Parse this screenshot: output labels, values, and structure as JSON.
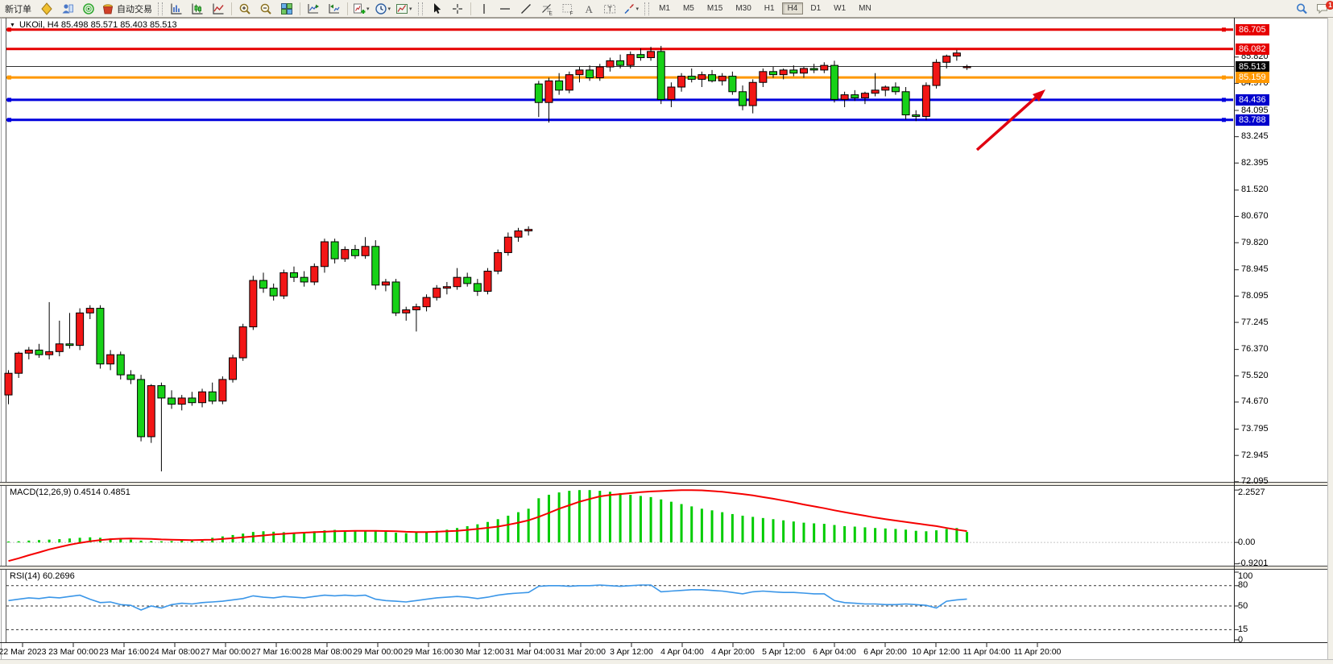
{
  "toolbar": {
    "new_order_label": "新订单",
    "autotrade_label": "自动交易",
    "timeframes": [
      "M1",
      "M5",
      "M15",
      "M30",
      "H1",
      "H4",
      "D1",
      "W1",
      "MN"
    ],
    "active_timeframe": "H4",
    "notification_count": "1",
    "items": [
      {
        "t": "text",
        "name": "new-order-button",
        "label": "新订单"
      },
      {
        "t": "icon",
        "name": "market-watch-icon"
      },
      {
        "t": "icon",
        "name": "profile-icon"
      },
      {
        "t": "icon",
        "name": "navigator-icon"
      },
      {
        "t": "iconlabel",
        "name": "autotrade-button",
        "icon": "autotrade",
        "label": "自动交易"
      },
      {
        "t": "handle"
      },
      {
        "t": "icon",
        "name": "bar-chart-icon"
      },
      {
        "t": "icon",
        "name": "candlestick-chart-icon"
      },
      {
        "t": "icon",
        "name": "line-chart-icon"
      },
      {
        "t": "sep"
      },
      {
        "t": "icon",
        "name": "zoom-in-icon"
      },
      {
        "t": "icon",
        "name": "zoom-out-icon"
      },
      {
        "t": "icon",
        "name": "tile-windows-icon"
      },
      {
        "t": "sep"
      },
      {
        "t": "icon",
        "name": "scroll-to-end-icon"
      },
      {
        "t": "icon",
        "name": "chart-shift-icon"
      },
      {
        "t": "sep"
      },
      {
        "t": "icon",
        "name": "add-indicator-icon",
        "caret": true
      },
      {
        "t": "icon",
        "name": "period-icon",
        "caret": true
      },
      {
        "t": "icon",
        "name": "template-icon",
        "caret": true
      },
      {
        "t": "handle"
      },
      {
        "t": "icon",
        "name": "cursor-icon"
      },
      {
        "t": "icon",
        "name": "crosshair-icon"
      },
      {
        "t": "sep"
      },
      {
        "t": "icon",
        "name": "vertical-line-icon"
      },
      {
        "t": "icon",
        "name": "horizontal-line-icon"
      },
      {
        "t": "icon",
        "name": "trendline-icon"
      },
      {
        "t": "icon",
        "name": "fibonacci-icon"
      },
      {
        "t": "icon",
        "name": "fibo-grid-icon"
      },
      {
        "t": "icon",
        "name": "text-icon"
      },
      {
        "t": "icon",
        "name": "label-icon"
      },
      {
        "t": "icon",
        "name": "shapes-icon",
        "caret": true
      },
      {
        "t": "handle"
      },
      {
        "t": "tfgroup"
      },
      {
        "t": "spacer"
      },
      {
        "t": "icon",
        "name": "search-icon"
      },
      {
        "t": "icon",
        "name": "notifications-icon",
        "badge": "1"
      }
    ]
  },
  "chart": {
    "title": "UKOil, H4  85.498 85.571 85.403 85.513",
    "symbol": "UKOil",
    "timeframe": "H4",
    "ohlc": {
      "open": "85.498",
      "high": "85.571",
      "low": "85.403",
      "close": "85.513"
    }
  },
  "panels": {
    "macd": {
      "label": "MACD(12,26,9) 0.4514 0.4851",
      "axis": [
        {
          "t": "2.2527",
          "v": 2.2527
        },
        {
          "t": "0.00",
          "v": 0
        },
        {
          "t": "-0.9201",
          "v": -0.9201
        }
      ]
    },
    "rsi": {
      "label": "RSI(14) 60.2696",
      "axis": [
        {
          "t": "100",
          "v": 100
        },
        {
          "t": "80",
          "v": 80
        },
        {
          "t": "50",
          "v": 50
        },
        {
          "t": "15",
          "v": 15
        },
        {
          "t": "0",
          "v": 0
        }
      ],
      "levels": [
        80,
        50,
        15
      ]
    }
  },
  "chart_data": {
    "type": "candlestick",
    "symbol": "UKOil",
    "period": "H4",
    "price_ylim": [
      72.09,
      87.09
    ],
    "up_color": "#f21616",
    "down_color": "#17d117",
    "price_axis_ticks": [
      {
        "t": "85.820",
        "p": 85.82
      },
      {
        "t": "84.970",
        "p": 84.97
      },
      {
        "t": "84.095",
        "p": 84.095
      },
      {
        "t": "83.245",
        "p": 83.245
      },
      {
        "t": "82.395",
        "p": 82.395
      },
      {
        "t": "81.520",
        "p": 81.52
      },
      {
        "t": "80.670",
        "p": 80.67
      },
      {
        "t": "79.820",
        "p": 79.82
      },
      {
        "t": "78.945",
        "p": 78.945
      },
      {
        "t": "78.095",
        "p": 78.095
      },
      {
        "t": "77.245",
        "p": 77.245
      },
      {
        "t": "76.370",
        "p": 76.37
      },
      {
        "t": "75.520",
        "p": 75.52
      },
      {
        "t": "74.670",
        "p": 74.67
      },
      {
        "t": "73.795",
        "p": 73.795
      },
      {
        "t": "72.945",
        "p": 72.945
      },
      {
        "t": "72.095",
        "p": 72.095
      }
    ],
    "time_labels": [
      "22 Mar 2023",
      "23 Mar 00:00",
      "23 Mar 16:00",
      "24 Mar 08:00",
      "27 Mar 00:00",
      "27 Mar 16:00",
      "28 Mar 08:00",
      "29 Mar 00:00",
      "29 Mar 16:00",
      "30 Mar 12:00",
      "31 Mar 04:00",
      "31 Mar 20:00",
      "3 Apr 12:00",
      "4 Apr 04:00",
      "4 Apr 20:00",
      "5 Apr 12:00",
      "6 Apr 04:00",
      "6 Apr 20:00",
      "10 Apr 12:00",
      "11 Apr 04:00",
      "11 Apr 20:00"
    ],
    "horizontal_lines": [
      {
        "price": 86.705,
        "color": "#e60000",
        "selected": true
      },
      {
        "price": 86.082,
        "color": "#e60000",
        "selected": false
      },
      {
        "price": 85.159,
        "color": "#ff9800",
        "selected": true
      },
      {
        "price": 84.436,
        "color": "#0000dd",
        "selected": true
      },
      {
        "price": 83.788,
        "color": "#0000dd",
        "selected": true
      }
    ],
    "bid_line": {
      "price": 85.513,
      "color": "#303030"
    },
    "badges": [
      {
        "t": "86.705",
        "p": 86.705,
        "bg": "#e60000"
      },
      {
        "t": "86.082",
        "p": 86.082,
        "bg": "#e60000"
      },
      {
        "t": "85.513",
        "p": 85.513,
        "bg": "#000000"
      },
      {
        "t": "85.159",
        "p": 85.159,
        "bg": "#ff9800"
      },
      {
        "t": "84.436",
        "p": 84.436,
        "bg": "#0000cc"
      },
      {
        "t": "83.788",
        "p": 83.788,
        "bg": "#0000cc"
      }
    ],
    "arrow_annotation": {
      "from": [
        1213,
        186
      ],
      "to": [
        1298,
        111
      ],
      "color": "#e00010"
    },
    "candles_ohlc": [
      [
        74.9,
        75.7,
        74.6,
        75.6
      ],
      [
        75.6,
        76.3,
        75.45,
        76.25
      ],
      [
        76.25,
        76.45,
        76.05,
        76.35
      ],
      [
        76.35,
        76.55,
        76.1,
        76.2
      ],
      [
        76.2,
        77.9,
        76.05,
        76.3
      ],
      [
        76.3,
        77.3,
        76.15,
        76.55
      ],
      [
        76.55,
        77.55,
        76.4,
        76.5
      ],
      [
        76.5,
        77.7,
        76.35,
        77.55
      ],
      [
        77.55,
        77.8,
        77.35,
        77.7
      ],
      [
        77.7,
        77.8,
        75.75,
        75.9
      ],
      [
        75.9,
        76.35,
        75.7,
        76.2
      ],
      [
        76.2,
        76.3,
        75.4,
        75.55
      ],
      [
        75.55,
        75.7,
        75.25,
        75.4
      ],
      [
        75.4,
        75.55,
        73.4,
        73.55
      ],
      [
        73.55,
        75.25,
        73.35,
        75.2
      ],
      [
        75.2,
        75.3,
        72.43,
        74.8
      ],
      [
        74.8,
        75.05,
        74.45,
        74.6
      ],
      [
        74.6,
        74.9,
        74.4,
        74.8
      ],
      [
        74.8,
        75.0,
        74.55,
        74.65
      ],
      [
        74.65,
        75.1,
        74.5,
        75.0
      ],
      [
        75.0,
        75.3,
        74.6,
        74.7
      ],
      [
        74.7,
        75.5,
        74.6,
        75.4
      ],
      [
        75.4,
        76.2,
        75.3,
        76.1
      ],
      [
        76.1,
        77.2,
        76.0,
        77.1
      ],
      [
        77.1,
        78.75,
        77.0,
        78.6
      ],
      [
        78.6,
        78.85,
        78.2,
        78.35
      ],
      [
        78.35,
        78.5,
        77.95,
        78.1
      ],
      [
        78.1,
        78.95,
        78.0,
        78.85
      ],
      [
        78.85,
        79.05,
        78.55,
        78.7
      ],
      [
        78.7,
        78.9,
        78.4,
        78.55
      ],
      [
        78.55,
        79.15,
        78.45,
        79.05
      ],
      [
        79.05,
        79.95,
        78.85,
        79.85
      ],
      [
        79.85,
        79.95,
        79.15,
        79.3
      ],
      [
        79.3,
        79.7,
        79.2,
        79.6
      ],
      [
        79.6,
        79.75,
        79.3,
        79.4
      ],
      [
        79.4,
        80.0,
        79.3,
        79.7
      ],
      [
        79.7,
        79.9,
        78.3,
        78.45
      ],
      [
        78.45,
        78.65,
        78.25,
        78.55
      ],
      [
        78.55,
        78.65,
        77.45,
        77.55
      ],
      [
        77.55,
        77.75,
        77.3,
        77.65
      ],
      [
        77.65,
        77.85,
        76.95,
        77.75
      ],
      [
        77.75,
        78.15,
        77.6,
        78.05
      ],
      [
        78.05,
        78.45,
        77.95,
        78.35
      ],
      [
        78.35,
        78.55,
        78.15,
        78.4
      ],
      [
        78.4,
        79.0,
        78.3,
        78.7
      ],
      [
        78.7,
        78.85,
        78.4,
        78.5
      ],
      [
        78.5,
        78.65,
        78.1,
        78.25
      ],
      [
        78.25,
        79.0,
        78.15,
        78.9
      ],
      [
        78.9,
        79.6,
        78.8,
        79.5
      ],
      [
        79.5,
        80.15,
        79.4,
        80.0
      ],
      [
        80.0,
        80.3,
        79.85,
        80.2
      ],
      [
        80.2,
        80.35,
        80.05,
        80.25
      ],
      [
        84.95,
        85.05,
        83.88,
        84.35
      ],
      [
        84.35,
        85.15,
        83.7,
        85.05
      ],
      [
        85.05,
        85.3,
        84.6,
        84.75
      ],
      [
        84.75,
        85.35,
        84.65,
        85.25
      ],
      [
        85.25,
        85.5,
        85.0,
        85.4
      ],
      [
        85.4,
        85.55,
        85.05,
        85.15
      ],
      [
        85.15,
        85.6,
        85.05,
        85.5
      ],
      [
        85.5,
        85.8,
        85.35,
        85.7
      ],
      [
        85.7,
        85.9,
        85.45,
        85.55
      ],
      [
        85.55,
        86.0,
        85.45,
        85.9
      ],
      [
        85.9,
        86.1,
        85.7,
        85.8
      ],
      [
        85.8,
        86.15,
        85.7,
        86.0
      ],
      [
        86.0,
        86.18,
        84.3,
        84.45
      ],
      [
        84.45,
        85.0,
        84.2,
        84.85
      ],
      [
        84.85,
        85.3,
        84.7,
        85.2
      ],
      [
        85.2,
        85.45,
        85.0,
        85.1
      ],
      [
        85.1,
        85.35,
        84.85,
        85.25
      ],
      [
        85.25,
        85.4,
        85.0,
        85.05
      ],
      [
        85.05,
        85.3,
        84.9,
        85.2
      ],
      [
        85.2,
        85.35,
        84.6,
        84.7
      ],
      [
        84.7,
        84.9,
        84.1,
        84.25
      ],
      [
        84.25,
        85.1,
        84.0,
        85.0
      ],
      [
        85.0,
        85.45,
        84.85,
        85.35
      ],
      [
        85.35,
        85.5,
        85.15,
        85.25
      ],
      [
        85.25,
        85.45,
        85.1,
        85.4
      ],
      [
        85.4,
        85.55,
        85.2,
        85.3
      ],
      [
        85.3,
        85.5,
        85.15,
        85.45
      ],
      [
        85.45,
        85.6,
        85.3,
        85.4
      ],
      [
        85.4,
        85.65,
        85.3,
        85.55
      ],
      [
        85.55,
        85.7,
        84.35,
        84.45
      ],
      [
        84.45,
        84.7,
        84.2,
        84.6
      ],
      [
        84.6,
        84.75,
        84.4,
        84.5
      ],
      [
        84.5,
        84.7,
        84.3,
        84.65
      ],
      [
        84.65,
        85.3,
        84.55,
        84.75
      ],
      [
        84.75,
        84.9,
        84.55,
        84.85
      ],
      [
        84.85,
        85.0,
        84.6,
        84.7
      ],
      [
        84.7,
        84.85,
        83.8,
        83.95
      ],
      [
        83.95,
        84.1,
        83.75,
        83.9
      ],
      [
        83.9,
        85.0,
        83.78,
        84.9
      ],
      [
        84.9,
        85.75,
        84.8,
        85.65
      ],
      [
        85.65,
        85.9,
        85.45,
        85.85
      ],
      [
        85.85,
        86.05,
        85.7,
        85.95
      ],
      [
        85.498,
        85.571,
        85.403,
        85.513
      ]
    ],
    "macd": {
      "ylim": [
        -1.0,
        2.43
      ],
      "colors": {
        "histogram": "#00cc00",
        "signal": "#f50000"
      },
      "histogram": [
        0.04,
        0.05,
        0.08,
        0.1,
        0.12,
        0.14,
        0.17,
        0.2,
        0.22,
        0.2,
        0.17,
        0.15,
        0.12,
        0.08,
        0.06,
        0.05,
        0.06,
        0.08,
        0.1,
        0.14,
        0.2,
        0.26,
        0.32,
        0.38,
        0.45,
        0.48,
        0.46,
        0.44,
        0.42,
        0.45,
        0.48,
        0.52,
        0.54,
        0.52,
        0.5,
        0.52,
        0.5,
        0.46,
        0.42,
        0.4,
        0.42,
        0.46,
        0.5,
        0.55,
        0.62,
        0.7,
        0.78,
        0.88,
        1.0,
        1.15,
        1.3,
        1.45,
        1.9,
        2.05,
        2.15,
        2.22,
        2.25,
        2.25,
        2.22,
        2.18,
        2.12,
        2.05,
        2.0,
        1.95,
        1.85,
        1.75,
        1.65,
        1.55,
        1.45,
        1.38,
        1.3,
        1.22,
        1.15,
        1.1,
        1.05,
        1.0,
        0.95,
        0.9,
        0.85,
        0.82,
        0.8,
        0.75,
        0.7,
        0.68,
        0.65,
        0.62,
        0.6,
        0.58,
        0.55,
        0.5,
        0.48,
        0.52,
        0.58,
        0.62,
        0.4514
      ],
      "signal": [
        -0.8,
        -0.68,
        -0.55,
        -0.43,
        -0.3,
        -0.2,
        -0.1,
        -0.02,
        0.05,
        0.1,
        0.14,
        0.16,
        0.17,
        0.16,
        0.15,
        0.13,
        0.12,
        0.11,
        0.1,
        0.11,
        0.12,
        0.15,
        0.18,
        0.22,
        0.26,
        0.3,
        0.34,
        0.37,
        0.4,
        0.42,
        0.44,
        0.46,
        0.48,
        0.49,
        0.5,
        0.5,
        0.5,
        0.49,
        0.48,
        0.46,
        0.45,
        0.45,
        0.46,
        0.48,
        0.5,
        0.54,
        0.58,
        0.63,
        0.68,
        0.76,
        0.85,
        0.95,
        1.1,
        1.27,
        1.45,
        1.6,
        1.75,
        1.87,
        1.98,
        2.04,
        2.08,
        2.12,
        2.16,
        2.19,
        2.21,
        2.23,
        2.25,
        2.25,
        2.24,
        2.21,
        2.18,
        2.13,
        2.08,
        2.02,
        1.95,
        1.88,
        1.8,
        1.72,
        1.63,
        1.55,
        1.47,
        1.38,
        1.3,
        1.22,
        1.15,
        1.07,
        1.0,
        0.94,
        0.88,
        0.82,
        0.76,
        0.7,
        0.62,
        0.55,
        0.4851
      ],
      "current_macd": 0.4514,
      "current_signal": 0.4851
    },
    "rsi": {
      "ylim": [
        0,
        100
      ],
      "color": "#3a96e8",
      "current": 60.2696,
      "values": [
        58,
        60,
        62,
        61,
        63,
        62,
        64,
        66,
        60,
        55,
        56,
        52,
        51,
        44,
        50,
        47,
        52,
        54,
        53,
        55,
        56,
        57,
        59,
        61,
        65,
        63,
        62,
        64,
        63,
        62,
        64,
        66,
        65,
        66,
        65,
        66,
        60,
        58,
        57,
        56,
        58,
        60,
        62,
        63,
        64,
        63,
        61,
        63,
        66,
        68,
        69,
        70,
        79,
        80,
        80,
        79,
        80,
        80,
        81,
        80,
        79,
        80,
        81,
        81,
        71,
        72,
        73,
        74,
        74,
        73,
        72,
        70,
        68,
        71,
        72,
        71,
        70,
        70,
        69,
        68,
        68,
        58,
        55,
        54,
        53,
        53,
        52,
        52,
        53,
        52,
        51,
        47,
        57,
        59,
        60.27
      ]
    }
  }
}
